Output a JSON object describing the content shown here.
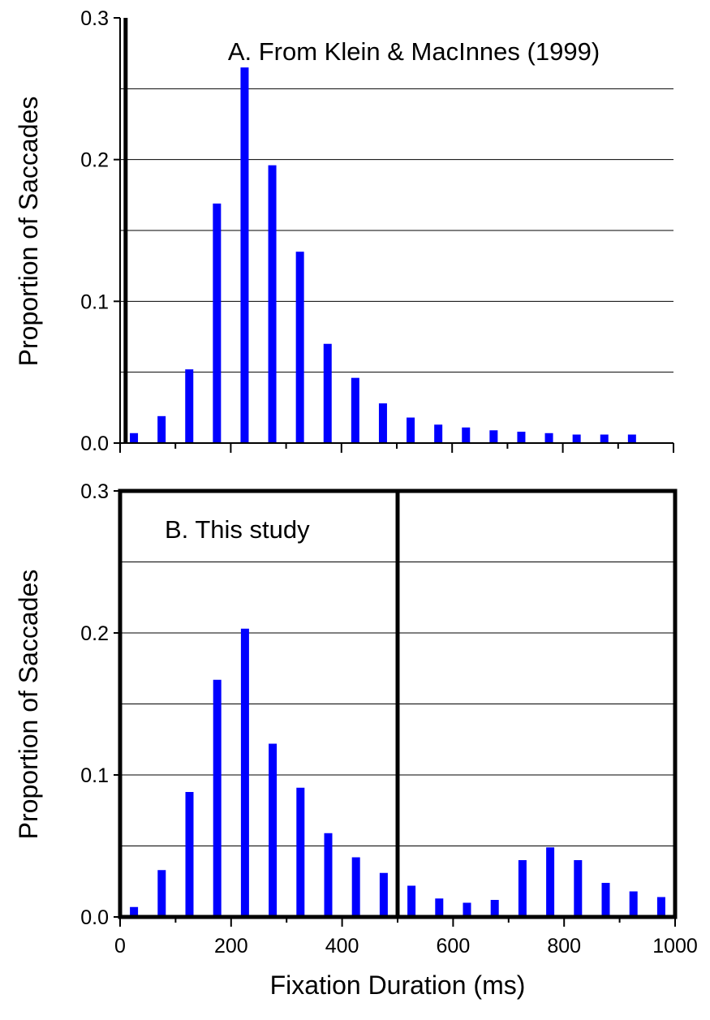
{
  "colors": {
    "bar": "#0000ff",
    "axis": "#000000",
    "grid": "#000000"
  },
  "x_label": "Fixation Duration (ms)",
  "chart_data": [
    {
      "type": "bar",
      "title": "A. From Klein & MacInnes (1999)",
      "ylabel": "Proportion of Saccades",
      "xlabel": "",
      "ylim": [
        0,
        0.3
      ],
      "xlim": [
        0,
        1000
      ],
      "y_ticks": [
        "0.0",
        "0.1",
        "0.2",
        "0.3"
      ],
      "x_ticks": [],
      "grid": "horizontal every 0.05",
      "threshold_ms": 10,
      "x": [
        25,
        75,
        125,
        175,
        225,
        275,
        325,
        375,
        425,
        475,
        525,
        575,
        625,
        675,
        725,
        775,
        825,
        875,
        925
      ],
      "values": [
        0.007,
        0.019,
        0.052,
        0.169,
        0.265,
        0.196,
        0.135,
        0.07,
        0.046,
        0.028,
        0.018,
        0.013,
        0.011,
        0.009,
        0.008,
        0.007,
        0.006,
        0.006,
        0.006
      ]
    },
    {
      "type": "bar",
      "title": "B. This study",
      "ylabel": "Proportion of Saccades",
      "xlabel": "Fixation Duration (ms)",
      "ylim": [
        0,
        0.3
      ],
      "xlim": [
        0,
        1000
      ],
      "y_ticks": [
        "0.0",
        "0.1",
        "0.2",
        "0.3"
      ],
      "x_ticks": [
        "0",
        "200",
        "400",
        "600",
        "800",
        "1000"
      ],
      "grid": "horizontal every 0.05",
      "threshold_ms": 500,
      "x": [
        25,
        75,
        125,
        175,
        225,
        275,
        325,
        375,
        425,
        475,
        525,
        575,
        625,
        675,
        725,
        775,
        825,
        875,
        925,
        975
      ],
      "values": [
        0.007,
        0.033,
        0.088,
        0.167,
        0.203,
        0.122,
        0.091,
        0.059,
        0.042,
        0.031,
        0.022,
        0.013,
        0.01,
        0.012,
        0.04,
        0.049,
        0.04,
        0.024,
        0.018,
        0.014
      ]
    }
  ]
}
